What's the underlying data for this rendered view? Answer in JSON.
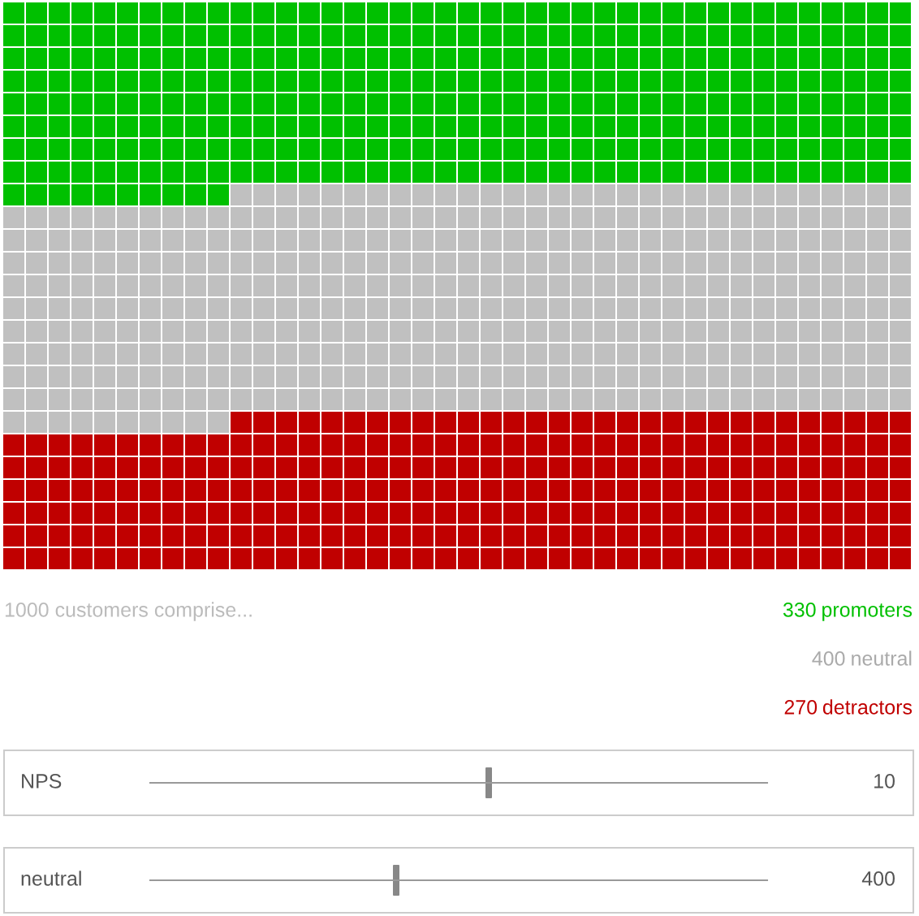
{
  "chart_data": {
    "type": "other",
    "categories": [
      "promoters",
      "neutral",
      "detractors"
    ],
    "values": [
      330,
      400,
      270
    ],
    "colors": [
      "#00c000",
      "#c0c0c0",
      "#c00000"
    ],
    "data_labels": true,
    "annotations": [
      "1000 customers comprise...",
      "NPS",
      "10",
      "neutral",
      "400"
    ]
  }
}
